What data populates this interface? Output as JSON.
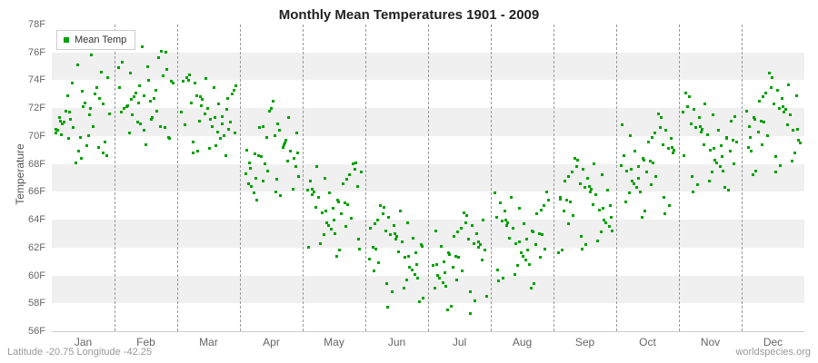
{
  "footer": {
    "left": "Latitude -20.75 Longitude -42.25",
    "right": "worldspecies.org"
  },
  "chart_data": {
    "type": "scatter",
    "title": "Monthly Mean Temperatures 1901 - 2009",
    "xlabel": "",
    "ylabel": "Temperature",
    "ylim": [
      56,
      78
    ],
    "ytick_step": 2,
    "ytick_suffix": "F",
    "grid": "horizontal-bands",
    "legend_position": "top-left",
    "marker_color": "#00a000",
    "band_color": "#f0f0f0",
    "categories": [
      "Jan",
      "Feb",
      "Mar",
      "Apr",
      "May",
      "Jun",
      "Jul",
      "Aug",
      "Sep",
      "Oct",
      "Nov",
      "Dec"
    ],
    "series": [
      {
        "name": "Mean Temp",
        "points_by_month": [
          [
            70.2,
            71.5,
            69.8,
            72.3,
            68.4,
            71.1,
            73.0,
            70.6,
            74.2,
            69.3,
            71.8,
            72.7,
            68.9,
            70.4,
            75.8,
            71.2,
            69.6,
            72.1,
            70.9,
            73.5,
            68.1,
            71.6,
            70.0,
            72.9,
            74.6,
            69.9,
            71.3,
            70.7,
            73.8,
            68.6,
            72.4,
            71.0,
            69.2,
            75.1,
            70.5,
            72.0,
            71.7,
            68.8,
            73.2,
            70.1
          ],
          [
            72.4,
            73.8,
            71.2,
            74.5,
            70.6,
            72.9,
            75.3,
            71.8,
            73.1,
            69.8,
            74.0,
            72.2,
            76.1,
            70.9,
            73.5,
            72.7,
            71.5,
            74.8,
            69.4,
            72.0,
            75.6,
            71.0,
            73.9,
            72.5,
            70.2,
            74.3,
            76.4,
            71.7,
            73.3,
            72.8,
            69.9,
            75.0,
            72.1,
            70.7,
            73.6,
            74.9,
            71.3,
            72.6,
            76.0,
            70.4
          ],
          [
            71.4,
            72.8,
            70.2,
            73.5,
            69.6,
            71.9,
            74.1,
            70.8,
            72.3,
            68.9,
            73.0,
            71.2,
            74.4,
            70.0,
            72.6,
            71.7,
            69.3,
            73.8,
            70.5,
            72.0,
            74.2,
            69.8,
            71.1,
            73.3,
            70.7,
            72.4,
            68.6,
            71.6,
            73.9,
            70.3,
            72.9,
            71.0,
            69.1,
            74.0,
            70.9,
            72.2,
            73.6,
            71.3,
            68.8,
            72.7
          ],
          [
            68.1,
            69.4,
            66.8,
            70.2,
            66.0,
            68.7,
            71.3,
            67.5,
            69.0,
            65.7,
            70.6,
            68.4,
            72.5,
            66.4,
            69.7,
            68.0,
            67.1,
            70.9,
            65.4,
            68.9,
            71.8,
            66.6,
            69.2,
            68.5,
            67.8,
            70.0,
            65.9,
            68.2,
            69.9,
            67.3,
            70.4,
            68.6,
            66.2,
            72.0,
            67.7,
            69.5,
            70.7,
            68.8,
            66.9,
            67.0
          ],
          [
            64.8,
            66.2,
            63.5,
            67.0,
            62.6,
            65.4,
            67.8,
            64.1,
            65.9,
            62.0,
            66.6,
            64.5,
            68.1,
            63.0,
            66.0,
            65.1,
            63.8,
            67.4,
            61.8,
            65.6,
            68.0,
            63.3,
            66.8,
            65.2,
            62.9,
            66.4,
            61.4,
            64.9,
            67.2,
            63.6,
            66.1,
            64.4,
            62.3,
            67.6,
            64.0,
            65.8,
            66.9,
            64.6,
            61.9,
            65.3
          ],
          [
            61.6,
            63.0,
            60.3,
            63.8,
            59.4,
            62.2,
            64.6,
            60.9,
            62.7,
            58.8,
            63.4,
            61.3,
            64.9,
            59.8,
            62.8,
            61.9,
            60.6,
            64.2,
            58.4,
            62.4,
            65.0,
            60.1,
            63.6,
            62.0,
            59.7,
            63.2,
            58.1,
            61.7,
            64.0,
            60.4,
            62.9,
            61.2,
            59.1,
            64.4,
            60.8,
            62.6,
            63.7,
            61.4,
            57.7,
            62.1
          ],
          [
            61.0,
            62.4,
            59.7,
            63.2,
            58.8,
            61.6,
            64.0,
            60.3,
            62.1,
            58.2,
            62.8,
            60.7,
            64.3,
            59.2,
            62.2,
            61.3,
            60.0,
            63.6,
            57.8,
            61.8,
            64.5,
            59.5,
            63.0,
            61.4,
            59.1,
            62.6,
            57.5,
            61.1,
            63.4,
            59.8,
            62.3,
            60.6,
            58.5,
            63.8,
            60.2,
            62.0,
            63.1,
            60.8,
            57.3,
            61.5
          ],
          [
            62.6,
            64.0,
            61.3,
            64.8,
            60.4,
            63.2,
            65.6,
            61.9,
            63.7,
            59.8,
            64.4,
            62.3,
            65.9,
            60.8,
            63.8,
            62.9,
            61.6,
            65.2,
            59.4,
            63.4,
            66.0,
            61.1,
            64.6,
            63.0,
            60.7,
            64.2,
            59.1,
            62.7,
            65.0,
            61.4,
            63.9,
            62.2,
            60.1,
            65.4,
            61.8,
            63.6,
            64.7,
            62.4,
            59.6,
            63.1
          ],
          [
            65.0,
            66.4,
            63.7,
            67.2,
            62.8,
            65.6,
            68.0,
            64.3,
            66.1,
            62.2,
            66.8,
            64.7,
            68.3,
            63.2,
            66.2,
            65.3,
            64.0,
            67.6,
            61.8,
            65.8,
            68.4,
            63.5,
            67.0,
            65.4,
            63.1,
            66.6,
            61.6,
            65.1,
            67.4,
            63.8,
            66.3,
            64.6,
            62.5,
            67.8,
            64.2,
            66.0,
            67.1,
            64.8,
            61.9,
            65.5
          ],
          [
            67.8,
            69.2,
            66.5,
            70.0,
            65.6,
            68.4,
            70.8,
            67.1,
            68.9,
            65.0,
            69.6,
            67.5,
            71.3,
            66.0,
            69.0,
            68.1,
            66.8,
            70.4,
            64.6,
            68.6,
            71.6,
            66.3,
            69.8,
            68.2,
            65.9,
            69.4,
            64.2,
            67.9,
            70.2,
            66.6,
            69.1,
            67.4,
            65.3,
            70.6,
            67.0,
            68.8,
            69.9,
            67.6,
            64.4,
            68.3
          ],
          [
            69.3,
            70.7,
            68.0,
            71.5,
            67.1,
            69.9,
            72.3,
            68.6,
            70.4,
            66.5,
            71.1,
            69.0,
            72.8,
            67.5,
            70.5,
            69.6,
            68.3,
            71.9,
            66.1,
            70.1,
            73.1,
            67.8,
            71.3,
            69.7,
            67.4,
            70.9,
            66.3,
            69.4,
            71.7,
            68.1,
            70.6,
            68.9,
            66.8,
            72.1,
            68.5,
            70.3,
            71.4,
            69.1,
            66.0,
            69.8
          ],
          [
            70.7,
            72.1,
            69.4,
            72.9,
            68.5,
            71.3,
            73.7,
            70.0,
            71.8,
            67.9,
            72.5,
            70.4,
            74.2,
            68.9,
            71.9,
            71.0,
            69.7,
            73.3,
            67.5,
            71.5,
            74.5,
            69.2,
            72.7,
            71.1,
            68.8,
            72.3,
            67.2,
            70.8,
            73.1,
            69.5,
            72.0,
            70.3,
            68.2,
            73.5,
            69.9,
            71.7,
            72.8,
            70.5,
            67.4,
            71.2
          ]
        ]
      }
    ]
  }
}
